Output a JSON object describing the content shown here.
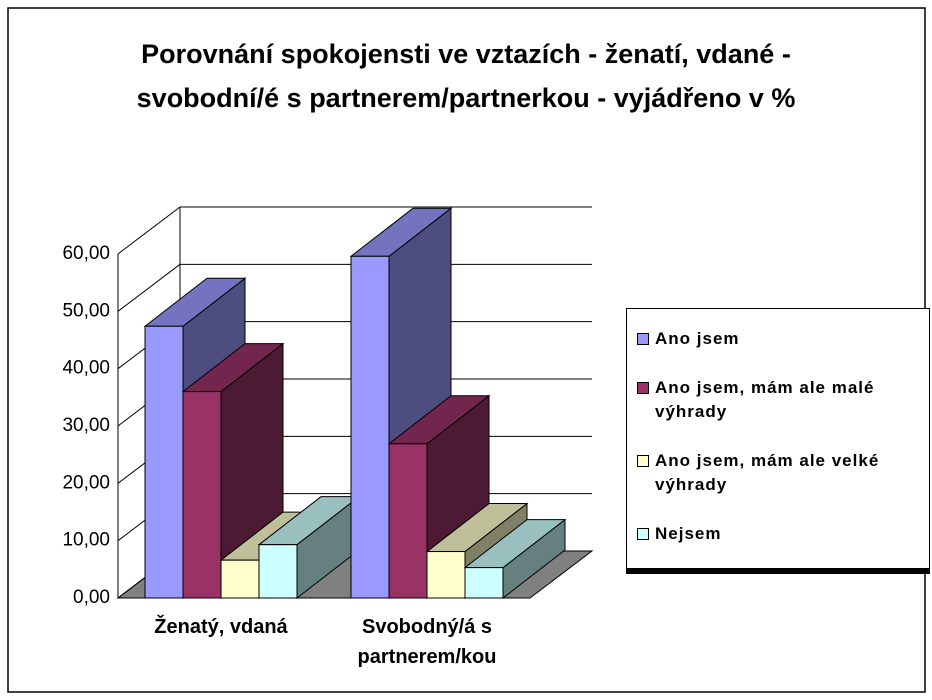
{
  "chart_data": {
    "type": "bar3d",
    "title": "Porovnání spokojensti ve vztazích - ženatí, vdané - svobodní/é s partnerem/partnerkou - vyjádřeno v  %",
    "categories": [
      "Ženatý, vdaná",
      "Svobodný/á s partnerem/kou"
    ],
    "series": [
      {
        "name": "Ano jsem",
        "color": "#9999ff",
        "values": [
          47.4,
          59.6
        ]
      },
      {
        "name": "Ano jsem, mám ale malé výhrady",
        "color": "#993366",
        "values": [
          36.0,
          26.9
        ]
      },
      {
        "name": "Ano jsem, mám ale velké výhrady",
        "color": "#ffffcc",
        "values": [
          6.6,
          8.1
        ]
      },
      {
        "name": "Nejsem",
        "color": "#ccffff",
        "values": [
          9.3,
          5.3
        ]
      }
    ],
    "ylim": [
      0,
      60
    ],
    "yticks": [
      {
        "value": 0,
        "label": "0,00"
      },
      {
        "value": 10,
        "label": "10,00"
      },
      {
        "value": 20,
        "label": "20,00"
      },
      {
        "value": 30,
        "label": "30,00"
      },
      {
        "value": 40,
        "label": "40,00"
      },
      {
        "value": 50,
        "label": "50,00"
      },
      {
        "value": 60,
        "label": "60,00"
      }
    ],
    "grid": true,
    "legend": "right"
  }
}
